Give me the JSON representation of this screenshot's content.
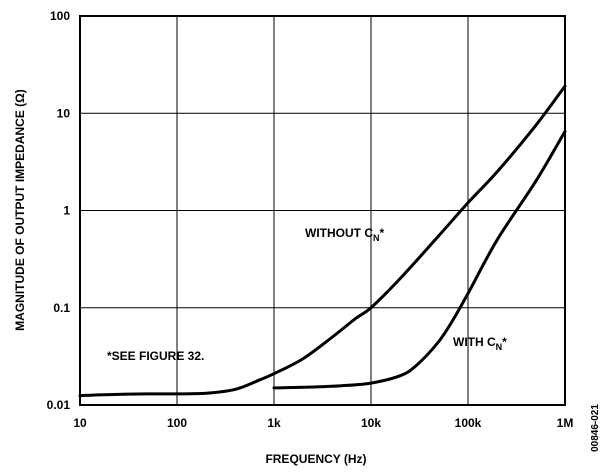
{
  "chart_data": {
    "type": "line",
    "xlabel": "FREQUENCY (Hz)",
    "ylabel": "MAGNITUDE OF OUTPUT IMPEDANCE (Ω)",
    "x_scale": "log",
    "y_scale": "log",
    "xlim": [
      10,
      1000000
    ],
    "ylim": [
      0.01,
      100
    ],
    "grid": true,
    "x_ticks": [
      {
        "value": 10,
        "label": "10"
      },
      {
        "value": 100,
        "label": "100"
      },
      {
        "value": 1000,
        "label": "1k"
      },
      {
        "value": 10000,
        "label": "10k"
      },
      {
        "value": 100000,
        "label": "100k"
      },
      {
        "value": 1000000,
        "label": "1M"
      }
    ],
    "y_ticks": [
      {
        "value": 0.01,
        "label": "0.01"
      },
      {
        "value": 0.1,
        "label": "0.1"
      },
      {
        "value": 1,
        "label": "1"
      },
      {
        "value": 10,
        "label": "10"
      },
      {
        "value": 100,
        "label": "100"
      }
    ],
    "series": [
      {
        "id": "without",
        "x": [
          10,
          20,
          50,
          100,
          200,
          400,
          700,
          1000,
          2000,
          4000,
          7000,
          10000,
          20000,
          50000,
          100000,
          200000,
          500000,
          1000000
        ],
        "y": [
          0.0125,
          0.0128,
          0.013,
          0.013,
          0.0132,
          0.0145,
          0.018,
          0.021,
          0.03,
          0.05,
          0.078,
          0.1,
          0.2,
          0.55,
          1.2,
          2.5,
          7.5,
          19
        ]
      },
      {
        "id": "with",
        "x": [
          1000,
          2000,
          5000,
          10000,
          20000,
          30000,
          50000,
          70000,
          100000,
          200000,
          500000,
          1000000
        ],
        "y": [
          0.015,
          0.0152,
          0.0158,
          0.0168,
          0.02,
          0.026,
          0.045,
          0.075,
          0.14,
          0.5,
          2.0,
          6.5
        ]
      }
    ],
    "annotations": [
      {
        "id": "without",
        "text": "WITHOUT C",
        "subscript": "N",
        "suffix": "*"
      },
      {
        "id": "with",
        "text": "WITH C",
        "subscript": "N",
        "suffix": "*"
      },
      {
        "id": "note",
        "text": "*SEE FIGURE 32."
      }
    ],
    "figure_id": "00846-021"
  }
}
